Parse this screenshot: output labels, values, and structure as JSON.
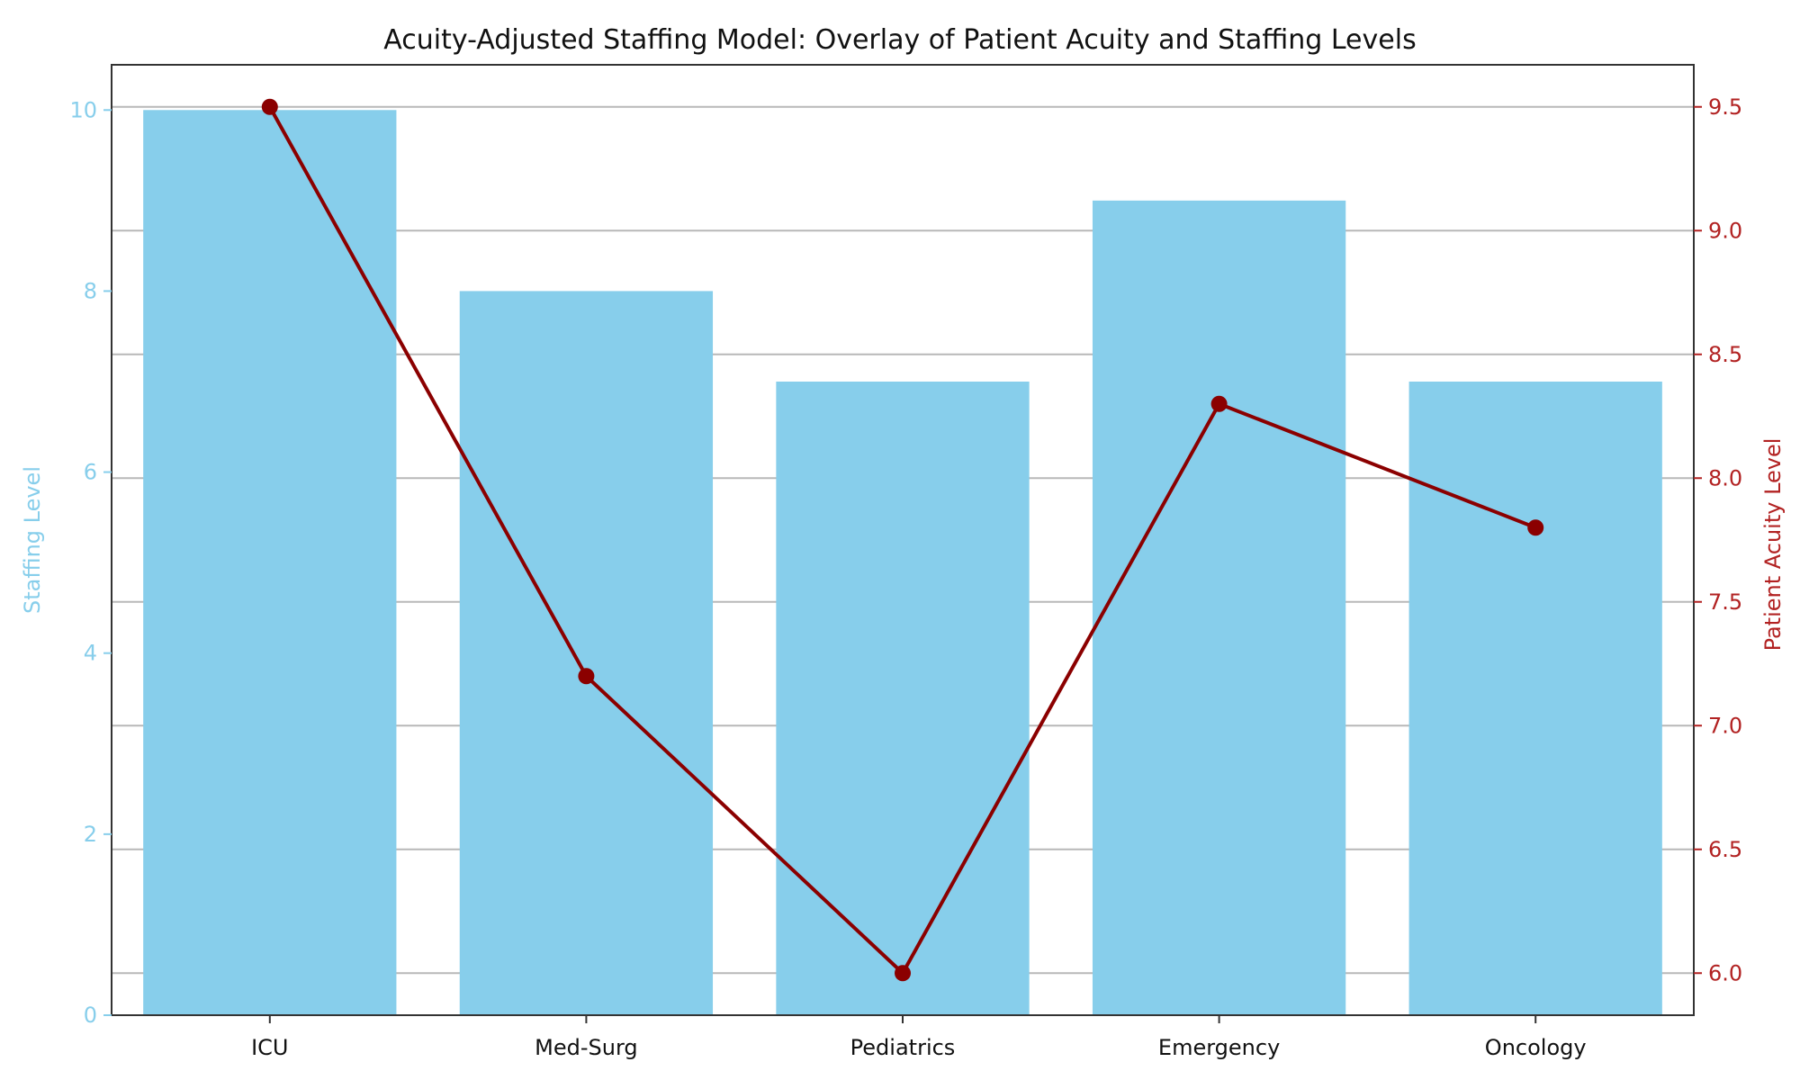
{
  "chart_data": {
    "type": "bar",
    "title": "Acuity-Adjusted Staffing Model: Overlay of Patient Acuity and Staffing Levels",
    "categories": [
      "ICU",
      "Med-Surg",
      "Pediatrics",
      "Emergency",
      "Oncology"
    ],
    "series": [
      {
        "type": "bar",
        "axis": "left",
        "values": [
          10,
          8,
          7,
          9,
          7
        ],
        "color": "#87CEEB"
      },
      {
        "type": "line",
        "axis": "right",
        "values": [
          9.5,
          7.2,
          6.0,
          8.3,
          7.8
        ],
        "color": "#8B0000",
        "marker": "circle"
      }
    ],
    "left_axis": {
      "label": "Staffing Level",
      "ylim": [
        0,
        10.5
      ],
      "ticks": [
        0,
        2,
        4,
        6,
        8,
        10
      ],
      "tick_labels": [
        "0",
        "2",
        "4",
        "6",
        "8",
        "10"
      ],
      "color": "#87CEEB"
    },
    "right_axis": {
      "label": "Patient Acuity Level",
      "ylim": [
        5.83,
        9.67
      ],
      "ticks": [
        6.0,
        6.5,
        7.0,
        7.5,
        8.0,
        8.5,
        9.0,
        9.5
      ],
      "tick_labels": [
        "6.0",
        "6.5",
        "7.0",
        "7.5",
        "8.0",
        "8.5",
        "9.0",
        "9.5"
      ],
      "color": "#B22222"
    },
    "grid": "horizontal, right-axis ticks",
    "legend": "none"
  }
}
